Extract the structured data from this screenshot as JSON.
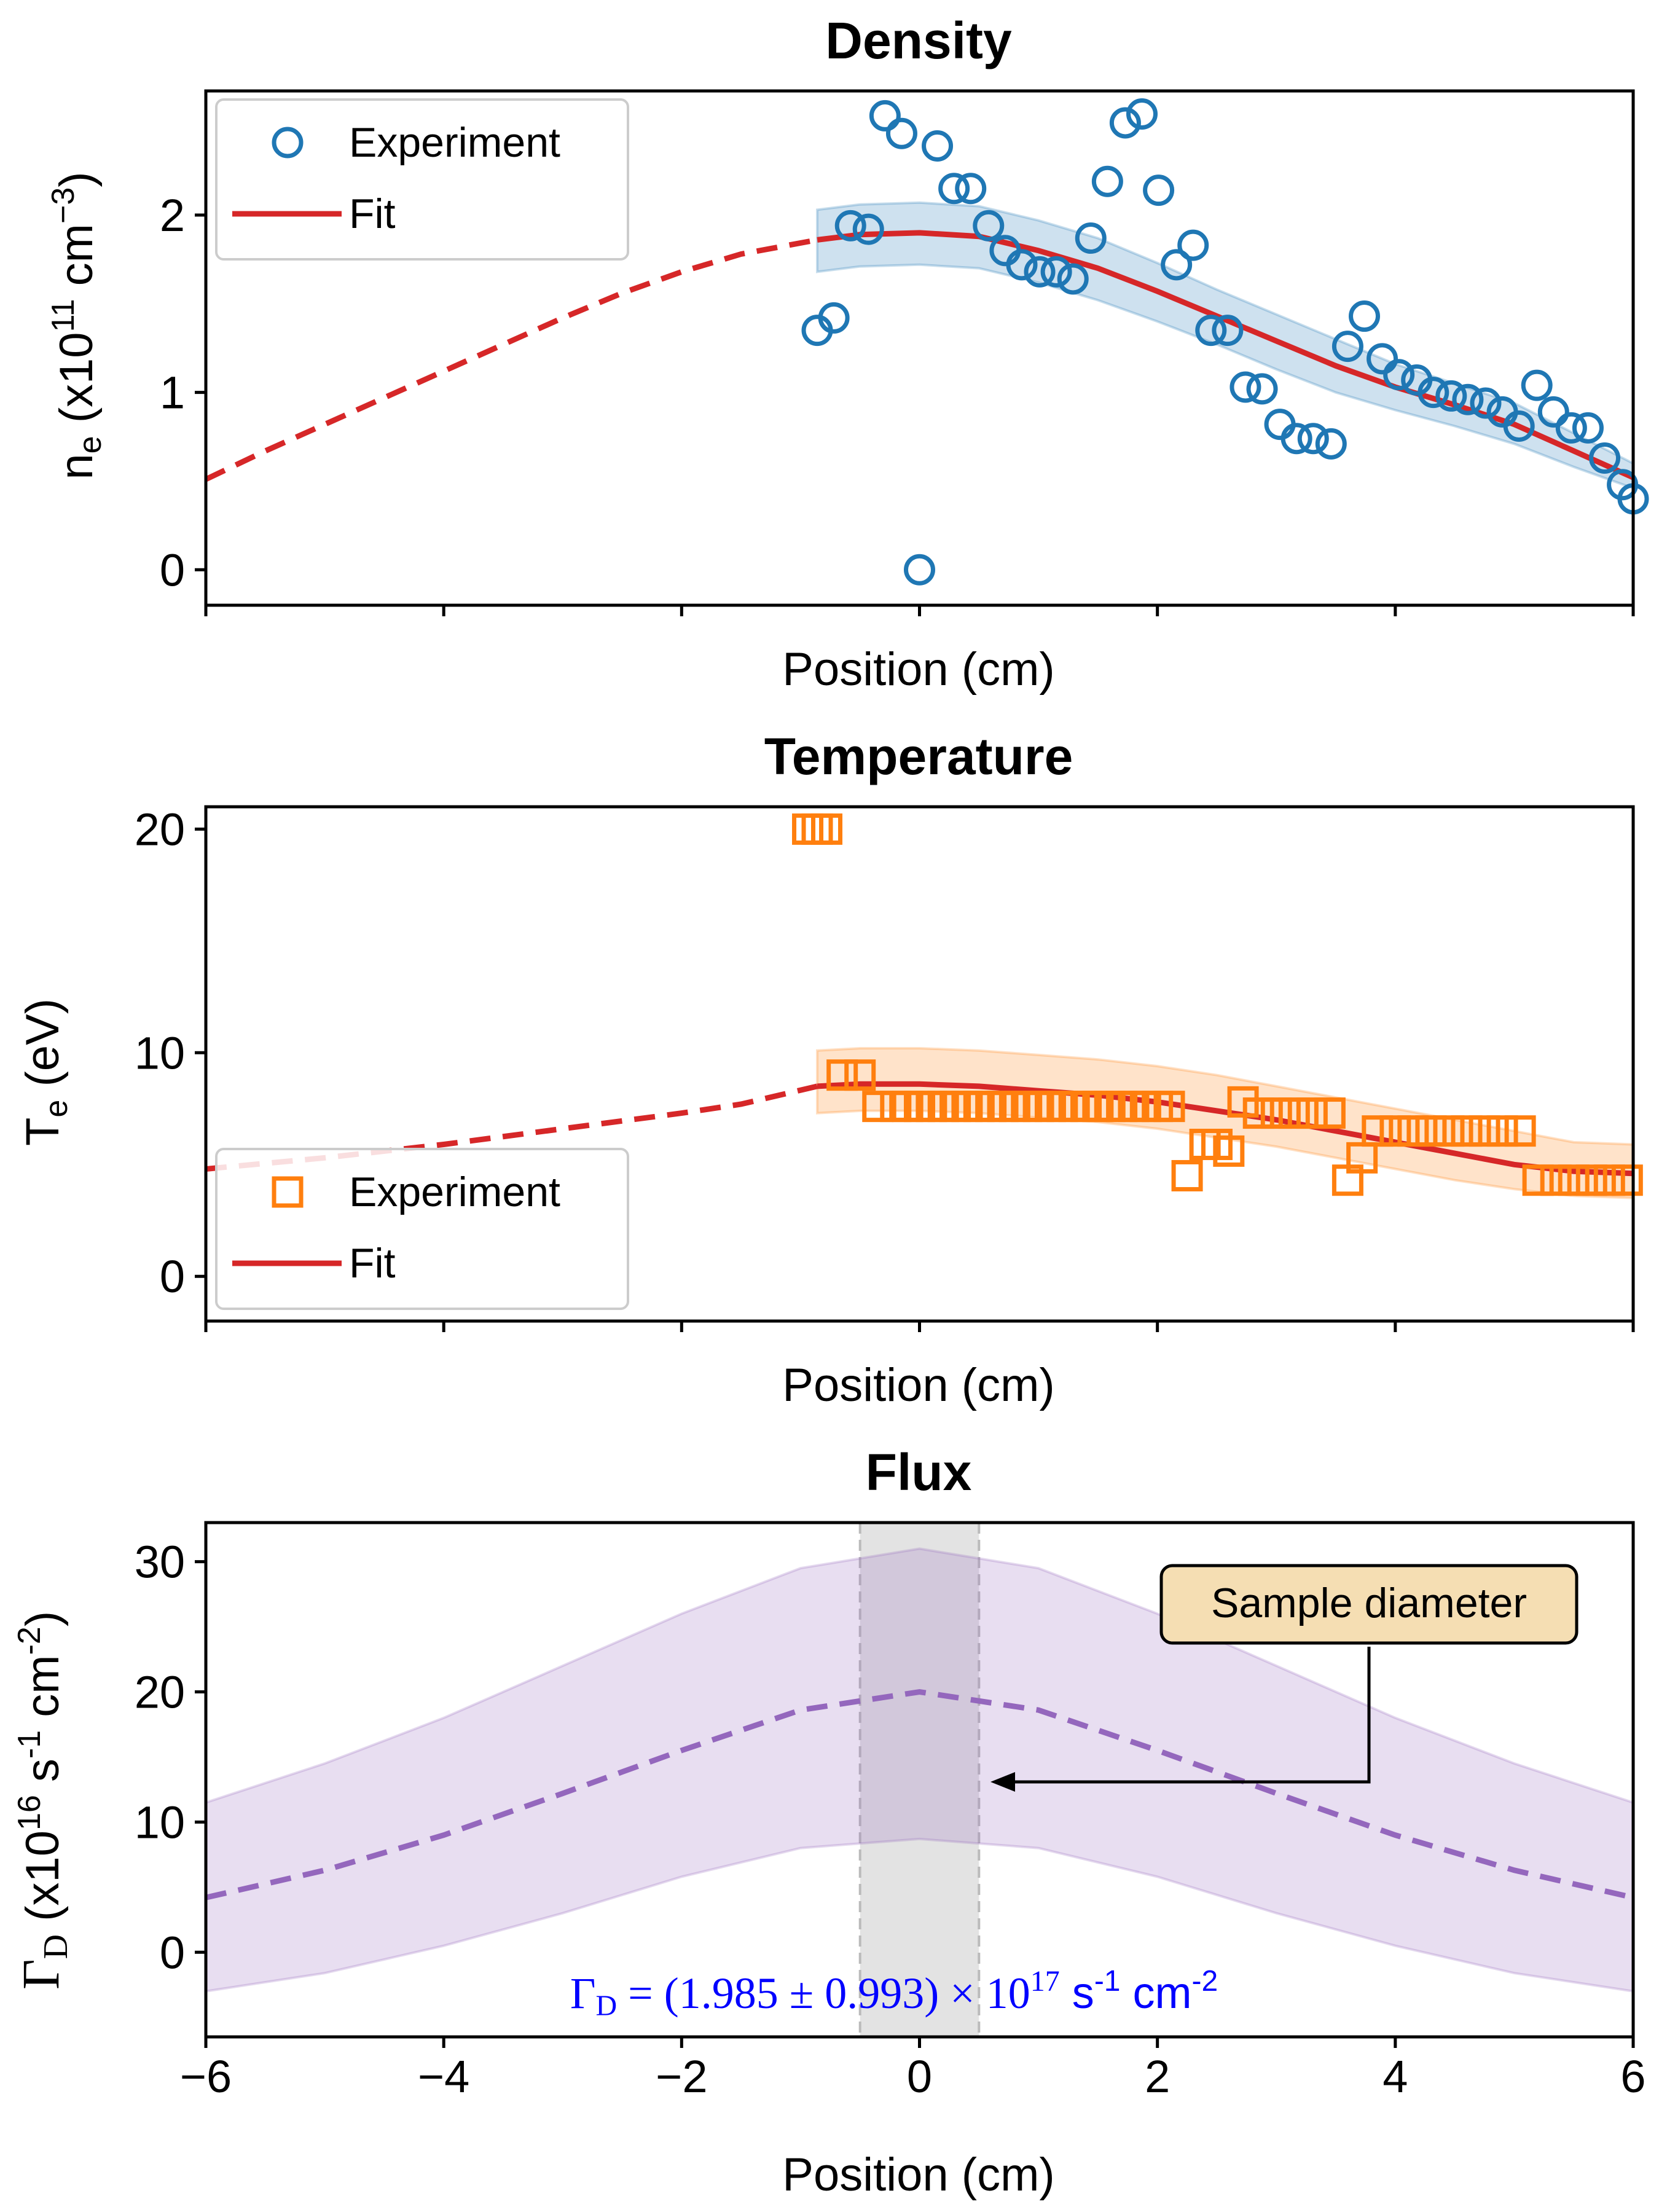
{
  "chart_data": [
    {
      "type": "scatter",
      "title": "Density",
      "xlabel": "Position (cm)",
      "ylabel": "n_e (x10^11 cm^-3)",
      "ylabel_parts": {
        "sym": "n",
        "sub": "e",
        "pre": " (x10",
        "exp": "11",
        "mid": " cm",
        "exp2": "−3",
        "post": ")"
      },
      "xlim": [
        -6,
        6
      ],
      "ylim": [
        -0.2,
        2.7
      ],
      "xticks": [
        -6,
        -4,
        -2,
        0,
        2,
        4,
        6
      ],
      "xticklabels_shown": false,
      "yticks": [
        0,
        1,
        2
      ],
      "yticklabels": [
        "0",
        "1",
        "2"
      ],
      "legend": {
        "position": "upper-left",
        "entries": [
          "Experiment",
          "Fit"
        ]
      },
      "colors": {
        "experiment": "#1f77b4",
        "fit": "#d62728",
        "band": "#1f77b4"
      },
      "series": [
        {
          "name": "Experiment",
          "marker": "circle-open",
          "x": [
            -0.86,
            -0.72,
            -0.58,
            -0.43,
            -0.29,
            -0.15,
            0,
            0.15,
            0.29,
            0.43,
            0.58,
            0.72,
            0.86,
            1.01,
            1.15,
            1.29,
            1.44,
            1.58,
            1.73,
            1.87,
            2.01,
            2.16,
            2.3,
            2.45,
            2.59,
            2.74,
            2.88,
            3.03,
            3.17,
            3.31,
            3.46,
            3.6,
            3.74,
            3.89,
            4.03,
            4.18,
            4.32,
            4.47,
            4.61,
            4.76,
            4.9,
            5.04,
            5.19,
            5.33,
            5.48,
            5.62,
            5.76,
            5.91,
            6.0
          ],
          "y": [
            1.35,
            1.42,
            1.94,
            1.92,
            2.56,
            2.46,
            0.0,
            2.39,
            2.15,
            2.15,
            1.94,
            1.8,
            1.72,
            1.68,
            1.68,
            1.64,
            1.87,
            2.19,
            2.52,
            2.57,
            2.14,
            1.72,
            1.83,
            1.35,
            1.35,
            1.03,
            1.02,
            0.82,
            0.74,
            0.74,
            0.71,
            1.26,
            1.43,
            1.19,
            1.1,
            1.07,
            1.0,
            0.98,
            0.96,
            0.94,
            0.89,
            0.81,
            1.04,
            0.89,
            0.8,
            0.8,
            0.63,
            0.48,
            0.4
          ]
        },
        {
          "name": "Fit",
          "style": "solid-line",
          "x": [
            -0.86,
            -0.5,
            0,
            0.5,
            1,
            1.5,
            2,
            2.5,
            3,
            3.5,
            4,
            4.5,
            5,
            5.5,
            6
          ],
          "y": [
            1.86,
            1.89,
            1.9,
            1.88,
            1.8,
            1.7,
            1.57,
            1.43,
            1.29,
            1.15,
            1.03,
            0.93,
            0.82,
            0.67,
            0.52
          ]
        },
        {
          "name": "",
          "style": "dashed-extrapolation",
          "x": [
            -6,
            -5.5,
            -5,
            -4.5,
            -4,
            -3.5,
            -3,
            -2.5,
            -2,
            -1.5,
            -0.86
          ],
          "y": [
            0.51,
            0.67,
            0.82,
            0.97,
            1.12,
            1.27,
            1.42,
            1.56,
            1.68,
            1.78,
            1.86
          ]
        },
        {
          "name": "",
          "style": "band",
          "x": [
            -0.86,
            -0.5,
            0,
            0.5,
            1,
            1.5,
            2,
            2.5,
            3,
            3.5,
            4,
            4.5,
            5,
            5.5,
            6
          ],
          "y_low": [
            1.68,
            1.71,
            1.72,
            1.7,
            1.62,
            1.52,
            1.4,
            1.27,
            1.13,
            1.0,
            0.9,
            0.81,
            0.71,
            0.58,
            0.46
          ],
          "y_high": [
            2.03,
            2.06,
            2.07,
            2.05,
            1.97,
            1.87,
            1.73,
            1.58,
            1.44,
            1.3,
            1.16,
            1.05,
            0.94,
            0.77,
            0.6
          ]
        }
      ]
    },
    {
      "type": "scatter",
      "title": "Temperature",
      "xlabel": "Position (cm)",
      "ylabel": "T_e (eV)",
      "ylabel_parts": {
        "sym": "T",
        "sub": "e",
        "post": " (eV)"
      },
      "xlim": [
        -6,
        6
      ],
      "ylim": [
        -2,
        21
      ],
      "xticks": [
        -6,
        -4,
        -2,
        0,
        2,
        4,
        6
      ],
      "xticklabels_shown": false,
      "yticks": [
        0,
        10,
        20
      ],
      "yticklabels": [
        "0",
        "10",
        "20"
      ],
      "legend": {
        "position": "lower-left",
        "entries": [
          "Experiment",
          "Fit"
        ]
      },
      "colors": {
        "experiment": "#ff7f0e",
        "fit": "#d62728",
        "band": "#ff7f0e"
      },
      "series": [
        {
          "name": "Experiment",
          "marker": "square-open",
          "x": [
            -0.94,
            -0.86,
            -0.78,
            -0.65,
            -0.5,
            -0.35,
            -0.2,
            -0.1,
            0,
            0.1,
            0.2,
            0.3,
            0.4,
            0.5,
            0.6,
            0.7,
            0.8,
            0.9,
            1.0,
            1.1,
            1.2,
            1.3,
            1.4,
            1.5,
            1.6,
            1.7,
            1.8,
            1.9,
            2.0,
            2.1,
            2.25,
            2.4,
            2.5,
            2.6,
            2.72,
            2.85,
            3.0,
            3.15,
            3.3,
            3.45,
            3.6,
            3.72,
            3.85,
            4.0,
            4.15,
            4.3,
            4.45,
            4.6,
            4.75,
            4.9,
            5.05,
            5.2,
            5.35,
            5.5,
            5.65,
            5.8,
            5.95
          ],
          "y": [
            20.0,
            20.0,
            20.0,
            9.0,
            9.0,
            7.6,
            7.6,
            7.6,
            7.6,
            7.6,
            7.6,
            7.6,
            7.6,
            7.6,
            7.6,
            7.6,
            7.6,
            7.6,
            7.6,
            7.6,
            7.6,
            7.6,
            7.6,
            7.6,
            7.6,
            7.6,
            7.6,
            7.6,
            7.6,
            7.6,
            4.5,
            5.9,
            5.9,
            5.6,
            7.8,
            7.3,
            7.3,
            7.3,
            7.3,
            7.3,
            4.3,
            5.3,
            6.5,
            6.5,
            6.5,
            6.5,
            6.5,
            6.5,
            6.5,
            6.5,
            6.5,
            4.3,
            4.3,
            4.3,
            4.3,
            4.3,
            4.3
          ]
        },
        {
          "name": "Fit",
          "style": "solid-line",
          "x": [
            -0.86,
            -0.5,
            0,
            0.5,
            1,
            1.5,
            2,
            2.5,
            3,
            3.5,
            4,
            4.5,
            5,
            5.5,
            6
          ],
          "y": [
            8.5,
            8.6,
            8.6,
            8.5,
            8.3,
            8.1,
            7.8,
            7.4,
            7.0,
            6.5,
            6.0,
            5.5,
            5.0,
            4.7,
            4.6
          ]
        },
        {
          "name": "",
          "style": "dashed-extrapolation",
          "x": [
            -6,
            -5,
            -4,
            -3,
            -2,
            -1.5,
            -0.86
          ],
          "y": [
            4.8,
            5.3,
            5.9,
            6.6,
            7.3,
            7.7,
            8.5
          ]
        },
        {
          "name": "",
          "style": "band",
          "x": [
            -0.86,
            -0.5,
            0,
            0.5,
            1,
            1.5,
            2,
            2.5,
            3,
            3.5,
            4,
            4.5,
            5,
            5.5,
            6
          ],
          "y_low": [
            7.3,
            7.4,
            7.4,
            7.3,
            7.1,
            6.9,
            6.6,
            6.2,
            5.8,
            5.3,
            4.8,
            4.3,
            3.9,
            3.6,
            3.5
          ],
          "y_high": [
            10.1,
            10.2,
            10.2,
            10.1,
            9.9,
            9.7,
            9.4,
            9.0,
            8.5,
            8.0,
            7.5,
            7.0,
            6.5,
            6.0,
            5.9
          ]
        }
      ]
    },
    {
      "type": "line",
      "title": "Flux",
      "xlabel": "Position (cm)",
      "ylabel": "Γ_D (x10^16 s^-1 cm^-2)",
      "ylabel_parts": {
        "sym": "Γ",
        "sub": "D",
        "pre": " (x10",
        "exp": "16",
        "mid": " s",
        "exp2": "-1",
        "mid2": " cm",
        "exp3": "-2",
        "post": ")"
      },
      "xlim": [
        -6,
        6
      ],
      "ylim": [
        -6.5,
        33
      ],
      "xticks": [
        -6,
        -4,
        -2,
        0,
        2,
        4,
        6
      ],
      "xticklabels": [
        "−6",
        "−4",
        "−2",
        "0",
        "2",
        "4",
        "6"
      ],
      "yticks": [
        0,
        10,
        20,
        30
      ],
      "yticklabels": [
        "0",
        "10",
        "20",
        "30"
      ],
      "colors": {
        "line": "#9467bd",
        "band": "#9467bd",
        "region": "#d9d9d9",
        "formula": "#0000ff"
      },
      "sample_region": [
        -0.5,
        0.5
      ],
      "annotation": {
        "text": "Sample diameter",
        "arrow_to_x": 0.6,
        "arrow_to_y": 13.3
      },
      "formula": {
        "sym": "Γ",
        "sub": "D",
        "eq": " = (1.985 ± 0.993) × 10",
        "exp": "17",
        "unit1": " s",
        "uexp1": "-1",
        "unit2": " cm",
        "uexp2": "-2"
      },
      "series": [
        {
          "name": "",
          "style": "dashed-line",
          "x": [
            -6,
            -5,
            -4,
            -3,
            -2,
            -1,
            0,
            1,
            2,
            3,
            4,
            5,
            6
          ],
          "y": [
            4.2,
            6.3,
            9.0,
            12.2,
            15.5,
            18.6,
            20.0,
            18.6,
            15.5,
            12.2,
            9.0,
            6.3,
            4.2
          ]
        },
        {
          "name": "",
          "style": "band",
          "x": [
            -6,
            -5,
            -4,
            -3,
            -2,
            -1,
            0,
            1,
            2,
            3,
            4,
            5,
            6
          ],
          "y_low": [
            -3.0,
            -1.6,
            0.5,
            3.0,
            5.8,
            8.0,
            8.7,
            8.0,
            5.8,
            3.0,
            0.5,
            -1.6,
            -3.0
          ],
          "y_high": [
            11.5,
            14.5,
            18.0,
            22.0,
            26.0,
            29.5,
            31.0,
            29.5,
            26.0,
            22.0,
            18.0,
            14.5,
            11.5
          ]
        }
      ]
    }
  ]
}
